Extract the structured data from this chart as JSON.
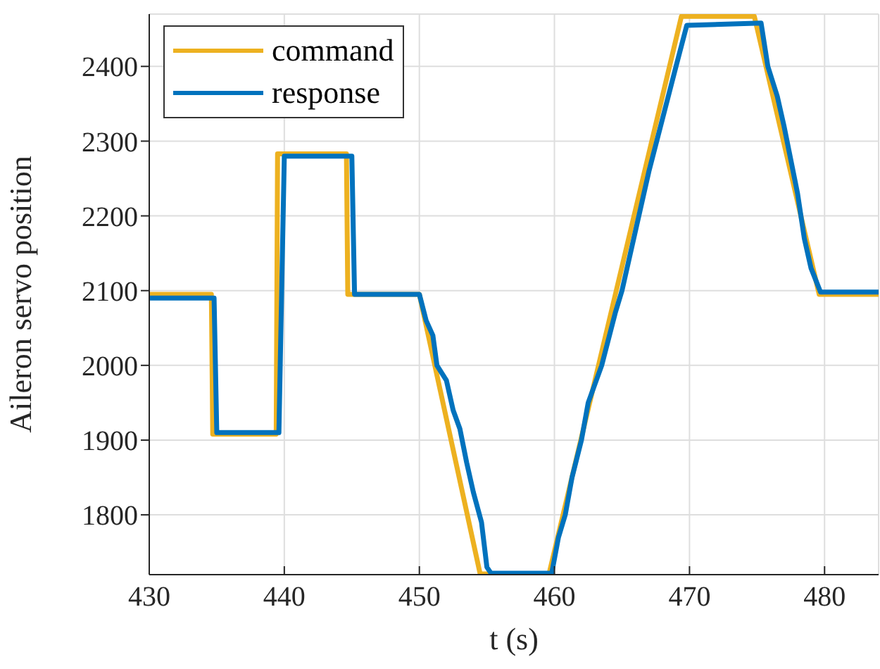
{
  "chart_data": {
    "type": "line",
    "xlabel": "t (s)",
    "ylabel": "Aileron servo position",
    "xlim": [
      430,
      484
    ],
    "xticks": [
      430,
      440,
      450,
      460,
      470,
      480
    ],
    "ylim": [
      1720,
      2470
    ],
    "yticks": [
      1800,
      1900,
      2000,
      2100,
      2200,
      2300,
      2400
    ],
    "grid": true,
    "legend": "top left",
    "line_style": "solid",
    "marker": "none",
    "series": [
      {
        "name": "command",
        "color": "#edb120",
        "x": [
          430,
          434.6,
          434.7,
          439.4,
          439.5,
          444.6,
          444.7,
          450,
          454.5,
          459.6,
          469.4,
          474.8,
          479.6,
          484
        ],
        "values": [
          2095,
          2095,
          1908,
          1908,
          2283,
          2283,
          2095,
          2095,
          1721,
          1721,
          2467,
          2467,
          2095,
          2095
        ]
      },
      {
        "name": "response",
        "color": "#0072bd",
        "x": [
          430,
          434.8,
          435,
          439.6,
          440,
          445,
          445.2,
          450,
          450.5,
          451,
          451.3,
          452,
          452.5,
          453,
          453.5,
          454,
          454.6,
          455,
          455.3,
          459.8,
          460.3,
          460.8,
          461.3,
          462,
          462.5,
          463.5,
          464.5,
          465,
          466,
          467,
          468,
          469,
          469.8,
          475.3,
          475.8,
          476.5,
          477,
          478,
          478.5,
          479,
          479.7,
          484
        ],
        "values": [
          2090,
          2090,
          1910,
          1910,
          2280,
          2280,
          2095,
          2095,
          2060,
          2040,
          2000,
          1980,
          1940,
          1915,
          1870,
          1830,
          1790,
          1730,
          1722,
          1722,
          1770,
          1800,
          1850,
          1900,
          1950,
          2000,
          2070,
          2100,
          2180,
          2260,
          2330,
          2400,
          2455,
          2458,
          2400,
          2360,
          2320,
          2230,
          2170,
          2130,
          2098,
          2098
        ]
      }
    ]
  }
}
